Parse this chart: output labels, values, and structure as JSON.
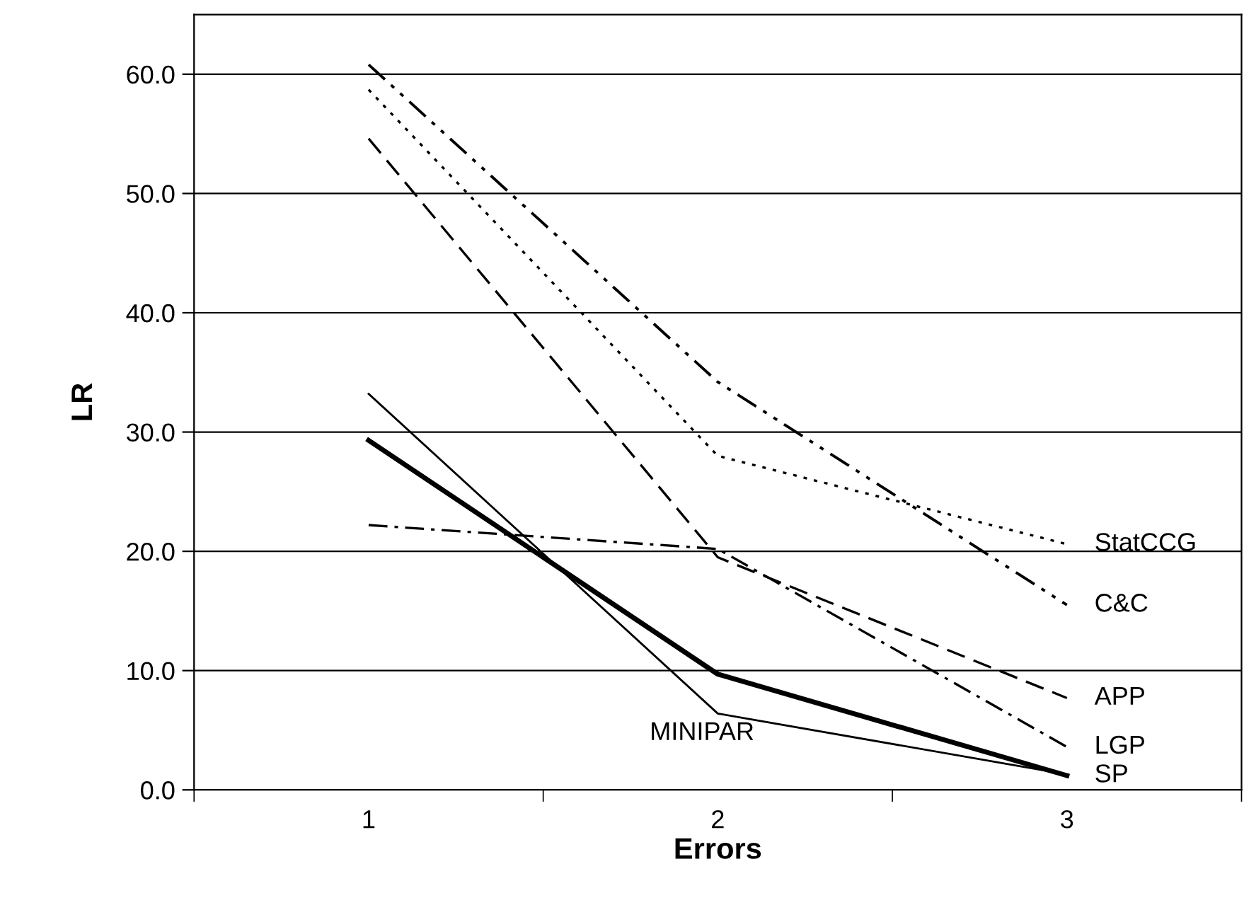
{
  "chart_data": {
    "type": "line",
    "xlabel": "Errors",
    "ylabel": "LR",
    "categories": [
      "1",
      "2",
      "3"
    ],
    "ylim": [
      0,
      65
    ],
    "yticks": [
      {
        "value": 0,
        "label": "0.0"
      },
      {
        "value": 10,
        "label": "10.0"
      },
      {
        "value": 20,
        "label": "20.0"
      },
      {
        "value": 30,
        "label": "30.0"
      },
      {
        "value": 40,
        "label": "40.0"
      },
      {
        "value": 50,
        "label": "50.0"
      },
      {
        "value": 60,
        "label": "60.0"
      }
    ],
    "grid": "y",
    "legend": false,
    "marker": "none",
    "annotations": [
      {
        "text": "MINIPAR",
        "x": "2",
        "y": 6.4
      }
    ],
    "series": [
      {
        "color": "#000000",
        "values": [
          33.2,
          6.4,
          1.3
        ],
        "line_style": "solid"
      },
      {
        "name": "SP",
        "color": "#000000",
        "values": [
          29.3,
          9.7,
          1.2
        ],
        "line_style": "solid"
      },
      {
        "name": "LGP",
        "color": "#000000",
        "values": [
          22.2,
          20.2,
          3.6
        ],
        "line_style": "dashdot"
      },
      {
        "name": "APP",
        "color": "#000000",
        "values": [
          54.6,
          19.5,
          7.7
        ],
        "line_style": "dashed"
      },
      {
        "name": "StatCCG",
        "color": "#000000",
        "values": [
          58.7,
          28.0,
          20.6
        ],
        "line_style": "dotted"
      },
      {
        "name": "C&C",
        "color": "#000000",
        "values": [
          60.8,
          34.2,
          15.5
        ],
        "line_style": "dashdotdot"
      }
    ]
  }
}
